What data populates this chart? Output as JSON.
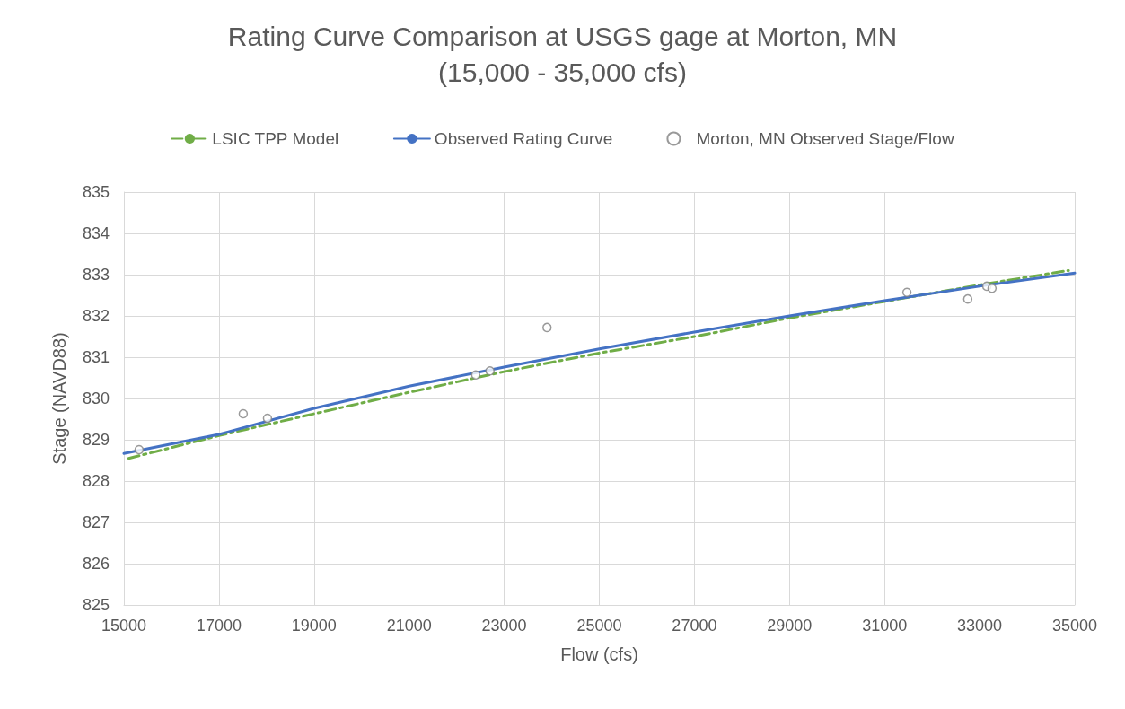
{
  "chart_data": {
    "type": "line",
    "title": "Rating Curve Comparison at USGS gage at Morton, MN",
    "subtitle": "(15,000 - 35,000 cfs)",
    "xlabel": "Flow (cfs)",
    "ylabel": "Stage (NAVD88)",
    "xlim": [
      15000,
      35000
    ],
    "xticks": [
      15000,
      17000,
      19000,
      21000,
      23000,
      25000,
      27000,
      29000,
      31000,
      33000,
      35000
    ],
    "ylim": [
      825,
      835
    ],
    "yticks": [
      825,
      826,
      827,
      828,
      829,
      830,
      831,
      832,
      833,
      834,
      835
    ],
    "grid": true,
    "legend": "top",
    "series": [
      {
        "name": "LSIC TPP Model",
        "color": "#70ad47",
        "line_style": "dashed",
        "marker": "none",
        "x": [
          15100,
          17000,
          19000,
          21000,
          23000,
          25000,
          27000,
          29000,
          31000,
          33000,
          34870
        ],
        "values": [
          828.55,
          829.1,
          829.63,
          830.15,
          830.65,
          831.1,
          831.5,
          831.95,
          832.35,
          832.75,
          833.1
        ]
      },
      {
        "name": "Observed Rating Curve",
        "color": "#4472c4",
        "line_style": "solid",
        "marker": "none",
        "x": [
          15000,
          17000,
          19000,
          21000,
          23000,
          25000,
          27000,
          29000,
          31000,
          33000,
          35000
        ],
        "values": [
          828.67,
          829.13,
          829.76,
          830.3,
          830.76,
          831.2,
          831.61,
          832.0,
          832.37,
          832.72,
          833.04
        ]
      },
      {
        "name": "Morton, MN Observed Stage/Flow",
        "type": "scatter",
        "color": "#7f7f7f",
        "marker": "circle",
        "x": [
          15320,
          17510,
          18020,
          22400,
          22700,
          23900,
          31470,
          32750,
          33150,
          33260
        ],
        "values": [
          828.76,
          829.63,
          829.52,
          830.57,
          830.67,
          831.72,
          832.57,
          832.41,
          832.72,
          832.67
        ]
      }
    ]
  }
}
